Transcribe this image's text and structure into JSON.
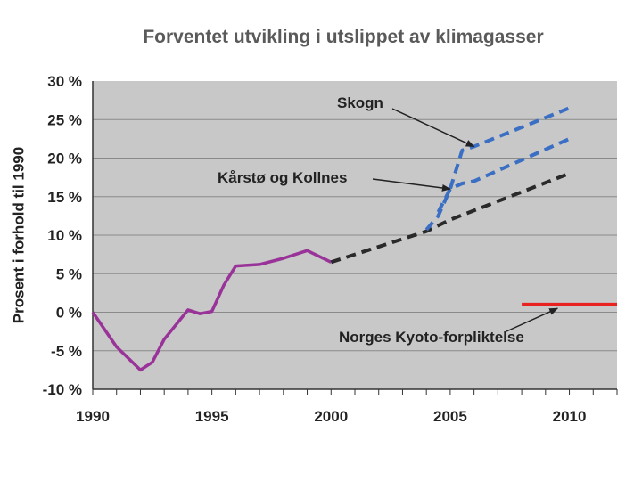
{
  "chart_data": {
    "type": "line",
    "title": "Forventet utvikling i utslippet av klimagasser",
    "xlabel": "",
    "ylabel": "Prosent i forhold til 1990",
    "xlim": [
      1990,
      2012
    ],
    "ylim": [
      -10,
      30
    ],
    "x_ticks": [
      "1990",
      "1995",
      "2000",
      "2005",
      "2010"
    ],
    "y_ticks": [
      "30 %",
      "25 %",
      "20 %",
      "15 %",
      "10 %",
      "5 %",
      "0 %",
      "-5 %",
      "-10 %"
    ],
    "grid": "horizontal",
    "colors": {
      "plot_bg": "#c8c8c8",
      "historical": "#993399",
      "baseline": "#2a2a2a",
      "scenario": "#3a6fc4",
      "target": "#e8231f",
      "grid": "#8a8a8a"
    },
    "series": [
      {
        "style": "solid",
        "x": [
          1990,
          1991,
          1992,
          1992.5,
          1993,
          1994,
          1994.5,
          1995,
          1995.5,
          1996,
          1997,
          1998,
          1999,
          2000
        ],
        "y": [
          0,
          -4.5,
          -7.5,
          -6.5,
          -3.5,
          0.3,
          -0.2,
          0.1,
          3.5,
          6,
          6.2,
          7,
          8,
          6.5
        ]
      },
      {
        "style": "dashed",
        "x": [
          2000,
          2004,
          2005,
          2010
        ],
        "y": [
          6.5,
          10.5,
          12,
          18
        ]
      },
      {
        "style": "dashed",
        "x": [
          2004,
          2004.5,
          2005,
          2005.5,
          2006,
          2010
        ],
        "y": [
          10.7,
          12.5,
          16,
          21,
          21.5,
          26.5
        ]
      },
      {
        "style": "dashed",
        "x": [
          2004.5,
          2005,
          2005.5,
          2006,
          2010
        ],
        "y": [
          13,
          16,
          16.7,
          17,
          22.5
        ]
      },
      {
        "style": "solid",
        "x": [
          2008,
          2012
        ],
        "y": [
          1,
          1
        ]
      }
    ],
    "annotations": [
      {
        "text": "Skogn",
        "target_x": 2006,
        "target_y": 21.5
      },
      {
        "text": "Kårstø og Kollnes",
        "target_x": 2005,
        "target_y": 16
      },
      {
        "text": "Norges Kyoto-forpliktelse",
        "target_x": 2009.5,
        "target_y": 0.5
      }
    ]
  }
}
